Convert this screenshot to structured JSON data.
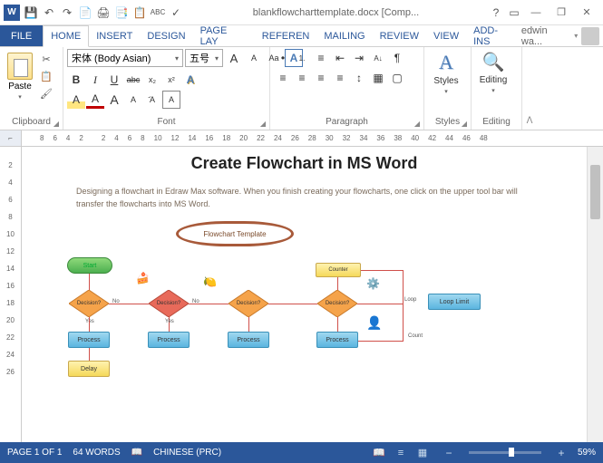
{
  "titlebar": {
    "app": "W",
    "filename": "blankflowcharttemplate.docx [Comp...",
    "help": "?",
    "ribbon_opts": "▭",
    "min": "—",
    "restore": "❐",
    "close": "✕"
  },
  "qat": [
    "💾",
    "↶",
    "↷",
    "📄",
    "🖨",
    "📑",
    "📋",
    "ABC",
    "✓"
  ],
  "tabs": {
    "file": "FILE",
    "items": [
      "HOME",
      "INSERT",
      "DESIGN",
      "PAGE LAY",
      "REFEREN",
      "MAILING",
      "REVIEW",
      "VIEW",
      "ADD-INS"
    ],
    "active": 0,
    "user": "edwin wa..."
  },
  "ribbon": {
    "clipboard": {
      "label": "Clipboard",
      "paste": "Paste",
      "cut": "✂",
      "copy": "📋",
      "painter": "🖌"
    },
    "font": {
      "label": "Font",
      "name": "宋体 (Body Asian)",
      "size": "五号",
      "grow": "A",
      "shrink": "A",
      "caseBtn": "Aa",
      "clear": "A",
      "bold": "B",
      "italic": "I",
      "underline": "U",
      "strike": "abc",
      "sub": "x₂",
      "sup": "x²",
      "effects": "A",
      "highlight": "A",
      "color": "A"
    },
    "paragraph": {
      "label": "Paragraph",
      "bullets": "•",
      "numbers": "1.",
      "multilevel": "≡",
      "dedent": "⇤",
      "indent": "⇥",
      "sort": "A↓",
      "marks": "¶",
      "left": "≡",
      "center": "≡",
      "right": "≡",
      "justify": "≡",
      "spacing": "↕",
      "shading": "▦",
      "borders": "▢"
    },
    "styles": {
      "label": "Styles",
      "text": "Styles"
    },
    "editing": {
      "label": "Editing",
      "text": "Editing"
    }
  },
  "ruler": {
    "corner": "⌐",
    "marks": [
      "8",
      "6",
      "4",
      "2",
      "",
      "2",
      "4",
      "6",
      "8",
      "10",
      "12",
      "14",
      "16",
      "18",
      "20",
      "22",
      "24",
      "26",
      "28",
      "30",
      "32",
      "34",
      "36",
      "38",
      "40",
      "42",
      "44",
      "46",
      "48"
    ]
  },
  "rulerv": [
    "",
    "2",
    "4",
    "6",
    "8",
    "10",
    "12",
    "14",
    "16",
    "18",
    "20",
    "22",
    "24",
    "26"
  ],
  "document": {
    "title": "Create Flowchart in MS Word",
    "body": "Designing a flowchart in Edraw Max software. When you finish creating your flowcharts, one click on the upper tool bar will transfer the flowcharts into MS Word.",
    "banner": "Flowchart Template",
    "shapes": {
      "start": "Start",
      "decision": "Decision?",
      "process": "Process",
      "delay": "Delay",
      "counter": "Counter",
      "loop": "Loop",
      "looplimit": "Loop Limit",
      "count": "Count",
      "yes": "Yes",
      "no": "No"
    }
  },
  "status": {
    "page": "PAGE 1 OF 1",
    "words": "64 WORDS",
    "proof": "📖",
    "lang": "CHINESE (PRC)",
    "views": [
      "📖",
      "≡",
      "▦"
    ],
    "zoom_minus": "−",
    "zoom_plus": "+",
    "zoom": "59%"
  },
  "colors": {
    "accent": "#2b579a",
    "decision_fill": "#f5a34a",
    "decision_stroke": "#c97a2a",
    "decision2_fill": "#e86a5a",
    "process_fill": "#5bb5e0",
    "terminator": "#6bc24a"
  }
}
